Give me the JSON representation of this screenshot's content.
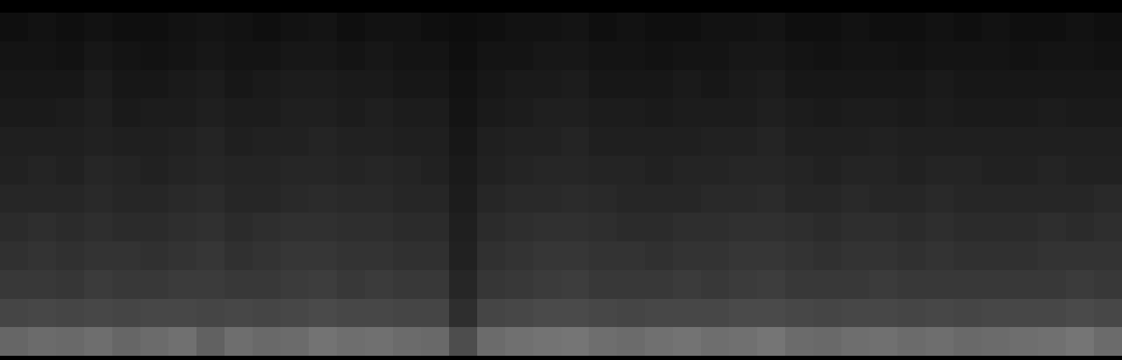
{
  "chart_data": {
    "type": "heatmap",
    "tick_labels": false,
    "zlim": [
      0,
      100
    ],
    "cells": [
      [
        6,
        7,
        6,
        7,
        6,
        6,
        7,
        8,
        7,
        6,
        7,
        8,
        6,
        7,
        7,
        6,
        5,
        6,
        7,
        7,
        8,
        6,
        7,
        6,
        6,
        7,
        7,
        8,
        6,
        6,
        7,
        6,
        6,
        7,
        6,
        7,
        6,
        6,
        7,
        6
      ],
      [
        8,
        8,
        7,
        9,
        8,
        7,
        8,
        9,
        8,
        8,
        9,
        9,
        8,
        9,
        8,
        8,
        6,
        8,
        8,
        9,
        9,
        8,
        8,
        7,
        8,
        8,
        9,
        9,
        8,
        7,
        8,
        8,
        7,
        8,
        8,
        8,
        7,
        8,
        8,
        7
      ],
      [
        9,
        9,
        9,
        11,
        9,
        9,
        10,
        11,
        9,
        10,
        11,
        11,
        10,
        10,
        9,
        9,
        7,
        9,
        10,
        10,
        11,
        9,
        9,
        9,
        10,
        9,
        10,
        11,
        9,
        9,
        9,
        9,
        9,
        10,
        9,
        9,
        9,
        9,
        9,
        9
      ],
      [
        10,
        10,
        11,
        12,
        10,
        11,
        11,
        12,
        11,
        11,
        12,
        12,
        11,
        12,
        11,
        11,
        8,
        10,
        11,
        12,
        12,
        11,
        11,
        10,
        11,
        11,
        11,
        12,
        11,
        10,
        11,
        11,
        10,
        11,
        10,
        10,
        10,
        11,
        10,
        10
      ],
      [
        12,
        12,
        12,
        13,
        12,
        12,
        13,
        14,
        12,
        13,
        13,
        14,
        13,
        13,
        12,
        12,
        9,
        12,
        13,
        13,
        14,
        12,
        12,
        12,
        12,
        13,
        13,
        14,
        12,
        12,
        12,
        13,
        12,
        12,
        12,
        12,
        12,
        12,
        12,
        12
      ],
      [
        13,
        14,
        13,
        15,
        14,
        13,
        14,
        15,
        14,
        14,
        15,
        15,
        14,
        15,
        14,
        13,
        10,
        13,
        14,
        15,
        15,
        14,
        14,
        13,
        14,
        14,
        15,
        15,
        14,
        13,
        14,
        14,
        13,
        14,
        14,
        13,
        13,
        14,
        13,
        13
      ],
      [
        15,
        15,
        15,
        16,
        15,
        15,
        16,
        17,
        15,
        15,
        16,
        17,
        16,
        16,
        15,
        15,
        11,
        15,
        16,
        16,
        17,
        16,
        15,
        15,
        15,
        16,
        16,
        17,
        15,
        15,
        16,
        15,
        15,
        16,
        15,
        15,
        15,
        15,
        15,
        16
      ],
      [
        17,
        18,
        17,
        18,
        17,
        17,
        18,
        19,
        17,
        18,
        19,
        19,
        18,
        18,
        17,
        17,
        12,
        17,
        18,
        19,
        19,
        18,
        17,
        17,
        18,
        18,
        19,
        19,
        18,
        17,
        18,
        18,
        17,
        18,
        17,
        17,
        17,
        18,
        17,
        18
      ],
      [
        19,
        20,
        19,
        20,
        20,
        19,
        20,
        21,
        19,
        20,
        21,
        21,
        20,
        20,
        19,
        19,
        13,
        19,
        20,
        21,
        21,
        20,
        20,
        19,
        20,
        20,
        21,
        21,
        20,
        19,
        20,
        20,
        19,
        20,
        19,
        19,
        19,
        20,
        20,
        20
      ],
      [
        22,
        22,
        21,
        23,
        22,
        22,
        23,
        23,
        22,
        22,
        23,
        24,
        22,
        23,
        22,
        22,
        15,
        21,
        22,
        23,
        24,
        22,
        22,
        22,
        23,
        22,
        23,
        24,
        22,
        22,
        22,
        23,
        22,
        22,
        22,
        22,
        22,
        22,
        23,
        22
      ],
      [
        27,
        28,
        27,
        28,
        27,
        28,
        28,
        27,
        28,
        27,
        28,
        29,
        28,
        28,
        27,
        27,
        18,
        27,
        28,
        29,
        29,
        28,
        27,
        28,
        28,
        28,
        29,
        29,
        28,
        27,
        28,
        28,
        27,
        28,
        27,
        28,
        28,
        28,
        29,
        28
      ],
      [
        40,
        42,
        41,
        43,
        40,
        42,
        44,
        38,
        43,
        41,
        42,
        45,
        43,
        44,
        42,
        41,
        30,
        42,
        44,
        45,
        46,
        43,
        42,
        44,
        45,
        43,
        44,
        46,
        42,
        41,
        43,
        44,
        42,
        43,
        41,
        42,
        43,
        44,
        46,
        42
      ]
    ]
  }
}
